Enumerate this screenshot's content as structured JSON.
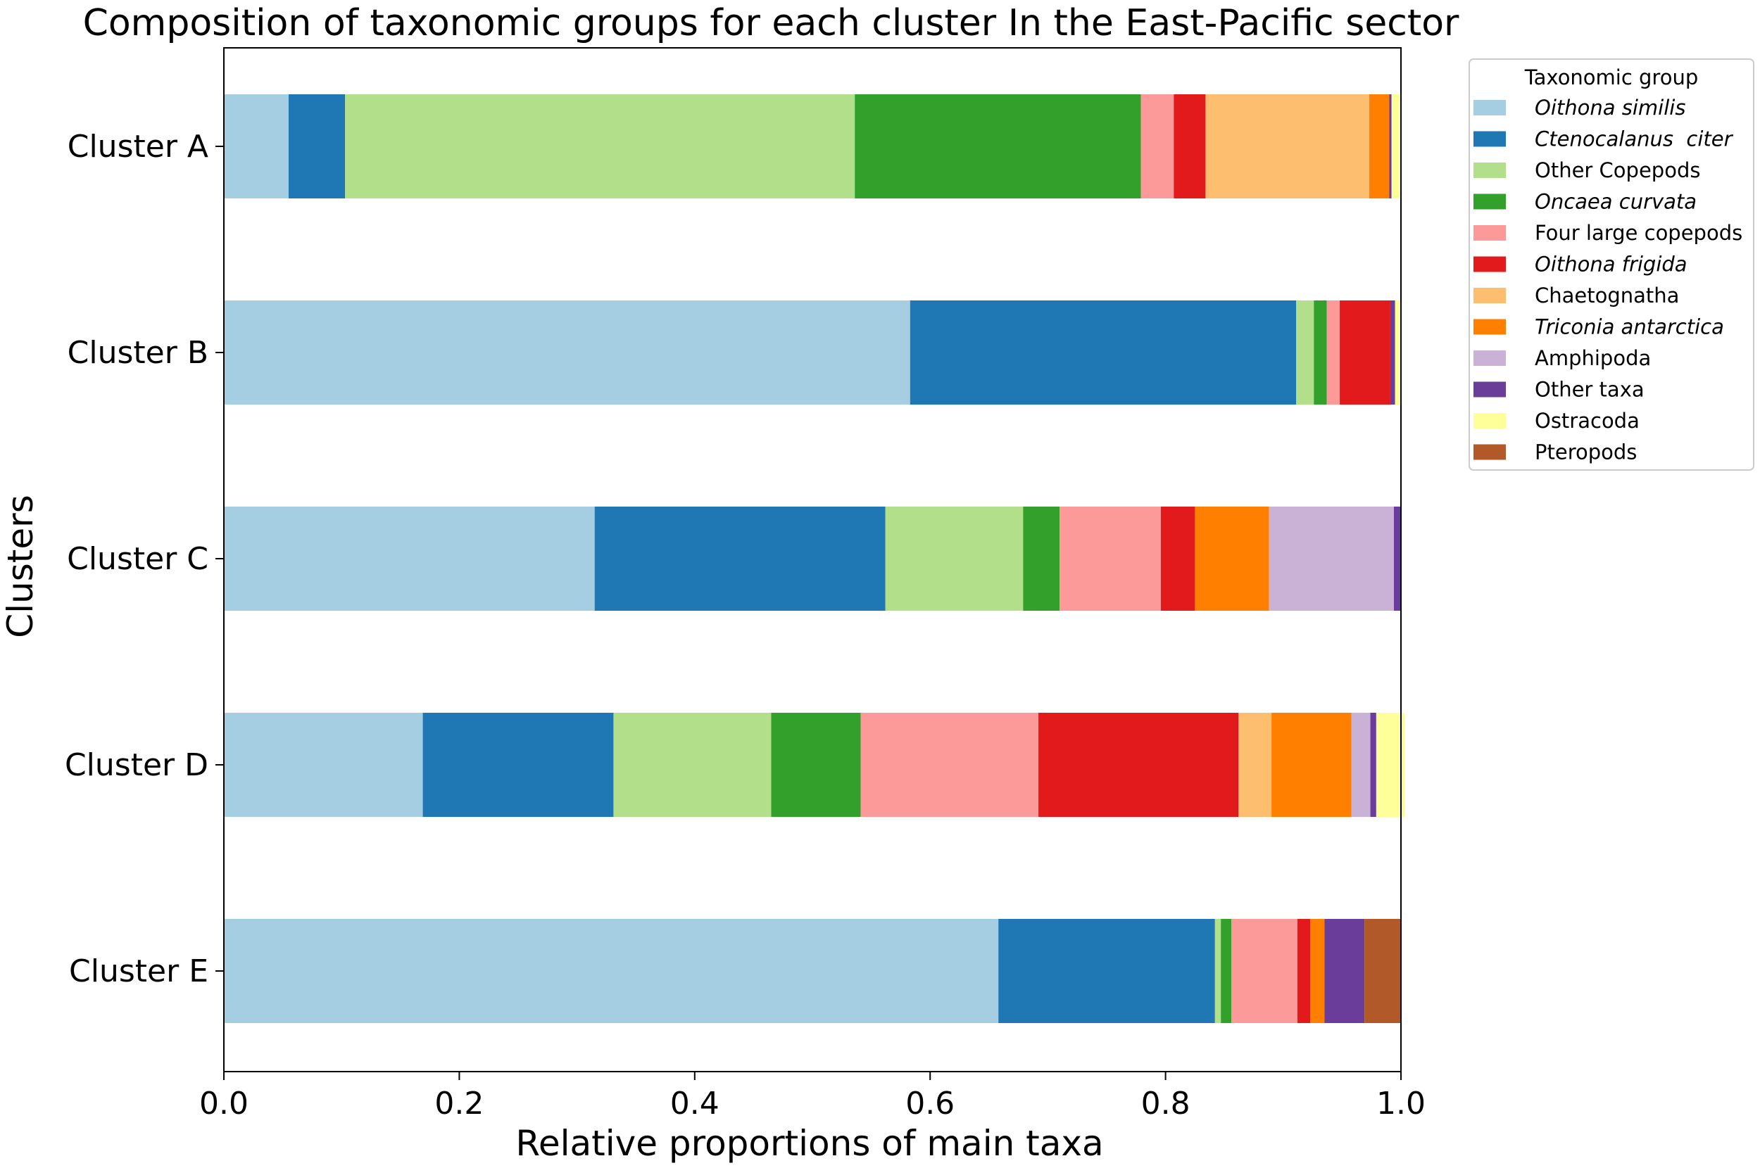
{
  "chart_data": {
    "type": "bar",
    "orientation": "horizontal",
    "stacked": true,
    "title": "Composition of taxonomic groups for each cluster In the East-Pacific sector",
    "xlabel": "Relative proportions of main taxa",
    "ylabel": "Clusters",
    "xlim": [
      0,
      1
    ],
    "xticks": [
      "0.0",
      "0.2",
      "0.4",
      "0.6",
      "0.8",
      "1.0"
    ],
    "categories": [
      "Cluster A",
      "Cluster B",
      "Cluster C",
      "Cluster D",
      "Cluster E"
    ],
    "legend": {
      "title": "Taxonomic group",
      "position": "upper right, outside plot"
    },
    "series": [
      {
        "name": "Oithona similis",
        "italic": true,
        "color": "#a6cee3",
        "values": [
          0.055,
          0.583,
          0.315,
          0.169,
          0.658
        ]
      },
      {
        "name": "Ctenocalanus  citer",
        "italic": true,
        "color": "#1f78b4",
        "values": [
          0.048,
          0.328,
          0.247,
          0.162,
          0.184
        ]
      },
      {
        "name": "Other Copepods",
        "italic": false,
        "color": "#b2df8a",
        "values": [
          0.433,
          0.015,
          0.117,
          0.134,
          0.005
        ]
      },
      {
        "name": "Oncaea curvata",
        "italic": true,
        "color": "#33a02c",
        "values": [
          0.243,
          0.011,
          0.031,
          0.076,
          0.009
        ]
      },
      {
        "name": "Four large copepods",
        "italic": false,
        "color": "#fb9a99",
        "values": [
          0.028,
          0.011,
          0.086,
          0.151,
          0.056
        ]
      },
      {
        "name": "Oithona frigida",
        "italic": true,
        "color": "#e31a1c",
        "values": [
          0.027,
          0.043,
          0.029,
          0.17,
          0.011
        ]
      },
      {
        "name": "Chaetognatha",
        "italic": false,
        "color": "#fdbf6f",
        "values": [
          0.139,
          0.0,
          0.0,
          0.028,
          0.0
        ]
      },
      {
        "name": "Triconia antarctica",
        "italic": true,
        "color": "#ff7f00",
        "values": [
          0.017,
          0.0,
          0.063,
          0.068,
          0.012
        ]
      },
      {
        "name": "Amphipoda",
        "italic": false,
        "color": "#cab2d6",
        "values": [
          0.0,
          0.0,
          0.106,
          0.016,
          0.0
        ]
      },
      {
        "name": "Other taxa",
        "italic": false,
        "color": "#6a3d9a",
        "values": [
          0.002,
          0.004,
          0.006,
          0.005,
          0.034
        ]
      },
      {
        "name": "Ostracoda",
        "italic": false,
        "color": "#ffff99",
        "values": [
          0.008,
          0.005,
          0.0,
          0.024,
          0.0
        ]
      },
      {
        "name": "Pteropods",
        "italic": false,
        "color": "#b15928",
        "values": [
          0.0,
          0.0,
          0.0,
          0.0,
          0.031
        ]
      }
    ]
  }
}
